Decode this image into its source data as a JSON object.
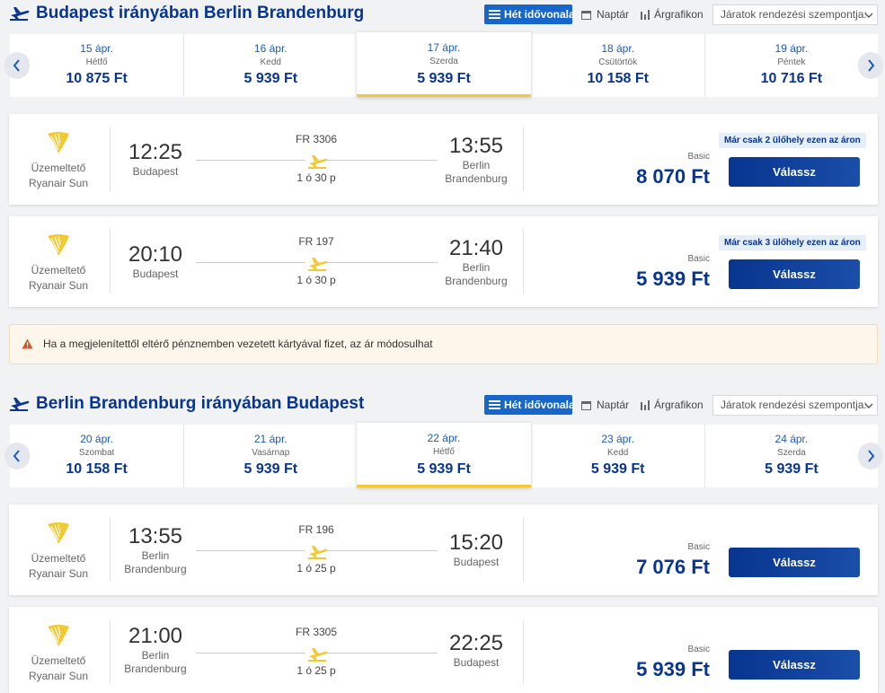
{
  "sections": [
    {
      "title": "Budapest irányában Berlin Brandenburg",
      "tabs": [
        "Hét idővonala",
        "Naptár",
        "Árgrafikon"
      ],
      "sort": "Járatok rendezési szempontja:",
      "selected_day": 2,
      "days": [
        {
          "date": "15 ápr.",
          "weekday": "Hétfő",
          "price": "10 875 Ft"
        },
        {
          "date": "16 ápr.",
          "weekday": "Kedd",
          "price": "5 939 Ft"
        },
        {
          "date": "17 ápr.",
          "weekday": "Szerda",
          "price": "5 939 Ft"
        },
        {
          "date": "18 ápr.",
          "weekday": "Csütörtök",
          "price": "10 158 Ft"
        },
        {
          "date": "19 ápr.",
          "weekday": "Péntek",
          "price": "10 716 Ft"
        }
      ],
      "flights": [
        {
          "operator_label": "Üzemeltető",
          "operator": "Ryanair Sun",
          "departure_time": "12:25",
          "departure_city": "Budapest",
          "flight_number": "FR 3306",
          "duration": "1 ó 30 p",
          "arrival_time": "13:55",
          "arrival_city": "Berlin Brandenburg",
          "notice": "Már csak 2 ülőhely ezen az áron",
          "fare": "Basic",
          "price": "8 070 Ft",
          "button": "Válassz"
        },
        {
          "operator_label": "Üzemeltető",
          "operator": "Ryanair Sun",
          "departure_time": "20:10",
          "departure_city": "Budapest",
          "flight_number": "FR 197",
          "duration": "1 ó 30 p",
          "arrival_time": "21:40",
          "arrival_city": "Berlin Brandenburg",
          "notice": "Már csak 3 ülőhely ezen az áron",
          "fare": "Basic",
          "price": "5 939 Ft",
          "button": "Válassz"
        }
      ]
    },
    {
      "title": "Berlin Brandenburg irányában Budapest",
      "tabs": [
        "Hét idővonala",
        "Naptár",
        "Árgrafikon"
      ],
      "sort": "Járatok rendezési szempontja:",
      "selected_day": 2,
      "days": [
        {
          "date": "20 ápr.",
          "weekday": "Szombat",
          "price": "10 158 Ft"
        },
        {
          "date": "21 ápr.",
          "weekday": "Vasárnap",
          "price": "5 939 Ft"
        },
        {
          "date": "22 ápr.",
          "weekday": "Hétfő",
          "price": "5 939 Ft"
        },
        {
          "date": "23 ápr.",
          "weekday": "Kedd",
          "price": "5 939 Ft"
        },
        {
          "date": "24 ápr.",
          "weekday": "Szerda",
          "price": "5 939 Ft"
        }
      ],
      "flights": [
        {
          "operator_label": "Üzemeltető",
          "operator": "Ryanair Sun",
          "departure_time": "13:55",
          "departure_city": "Berlin Brandenburg",
          "flight_number": "FR 196",
          "duration": "1 ó 25 p",
          "arrival_time": "15:20",
          "arrival_city": "Budapest",
          "fare": "Basic",
          "price": "7 076 Ft",
          "button": "Válassz"
        },
        {
          "operator_label": "Üzemeltető",
          "operator": "Ryanair Sun",
          "departure_time": "21:00",
          "departure_city": "Berlin Brandenburg",
          "flight_number": "FR 3305",
          "duration": "1 ó 25 p",
          "arrival_time": "22:25",
          "arrival_city": "Budapest",
          "fare": "Basic",
          "price": "5 939 Ft",
          "button": "Válassz"
        }
      ]
    }
  ],
  "warning": "Ha a megjelenítettől eltérő pénznemben vezetett kártyával fizet, az ár módosulhat"
}
